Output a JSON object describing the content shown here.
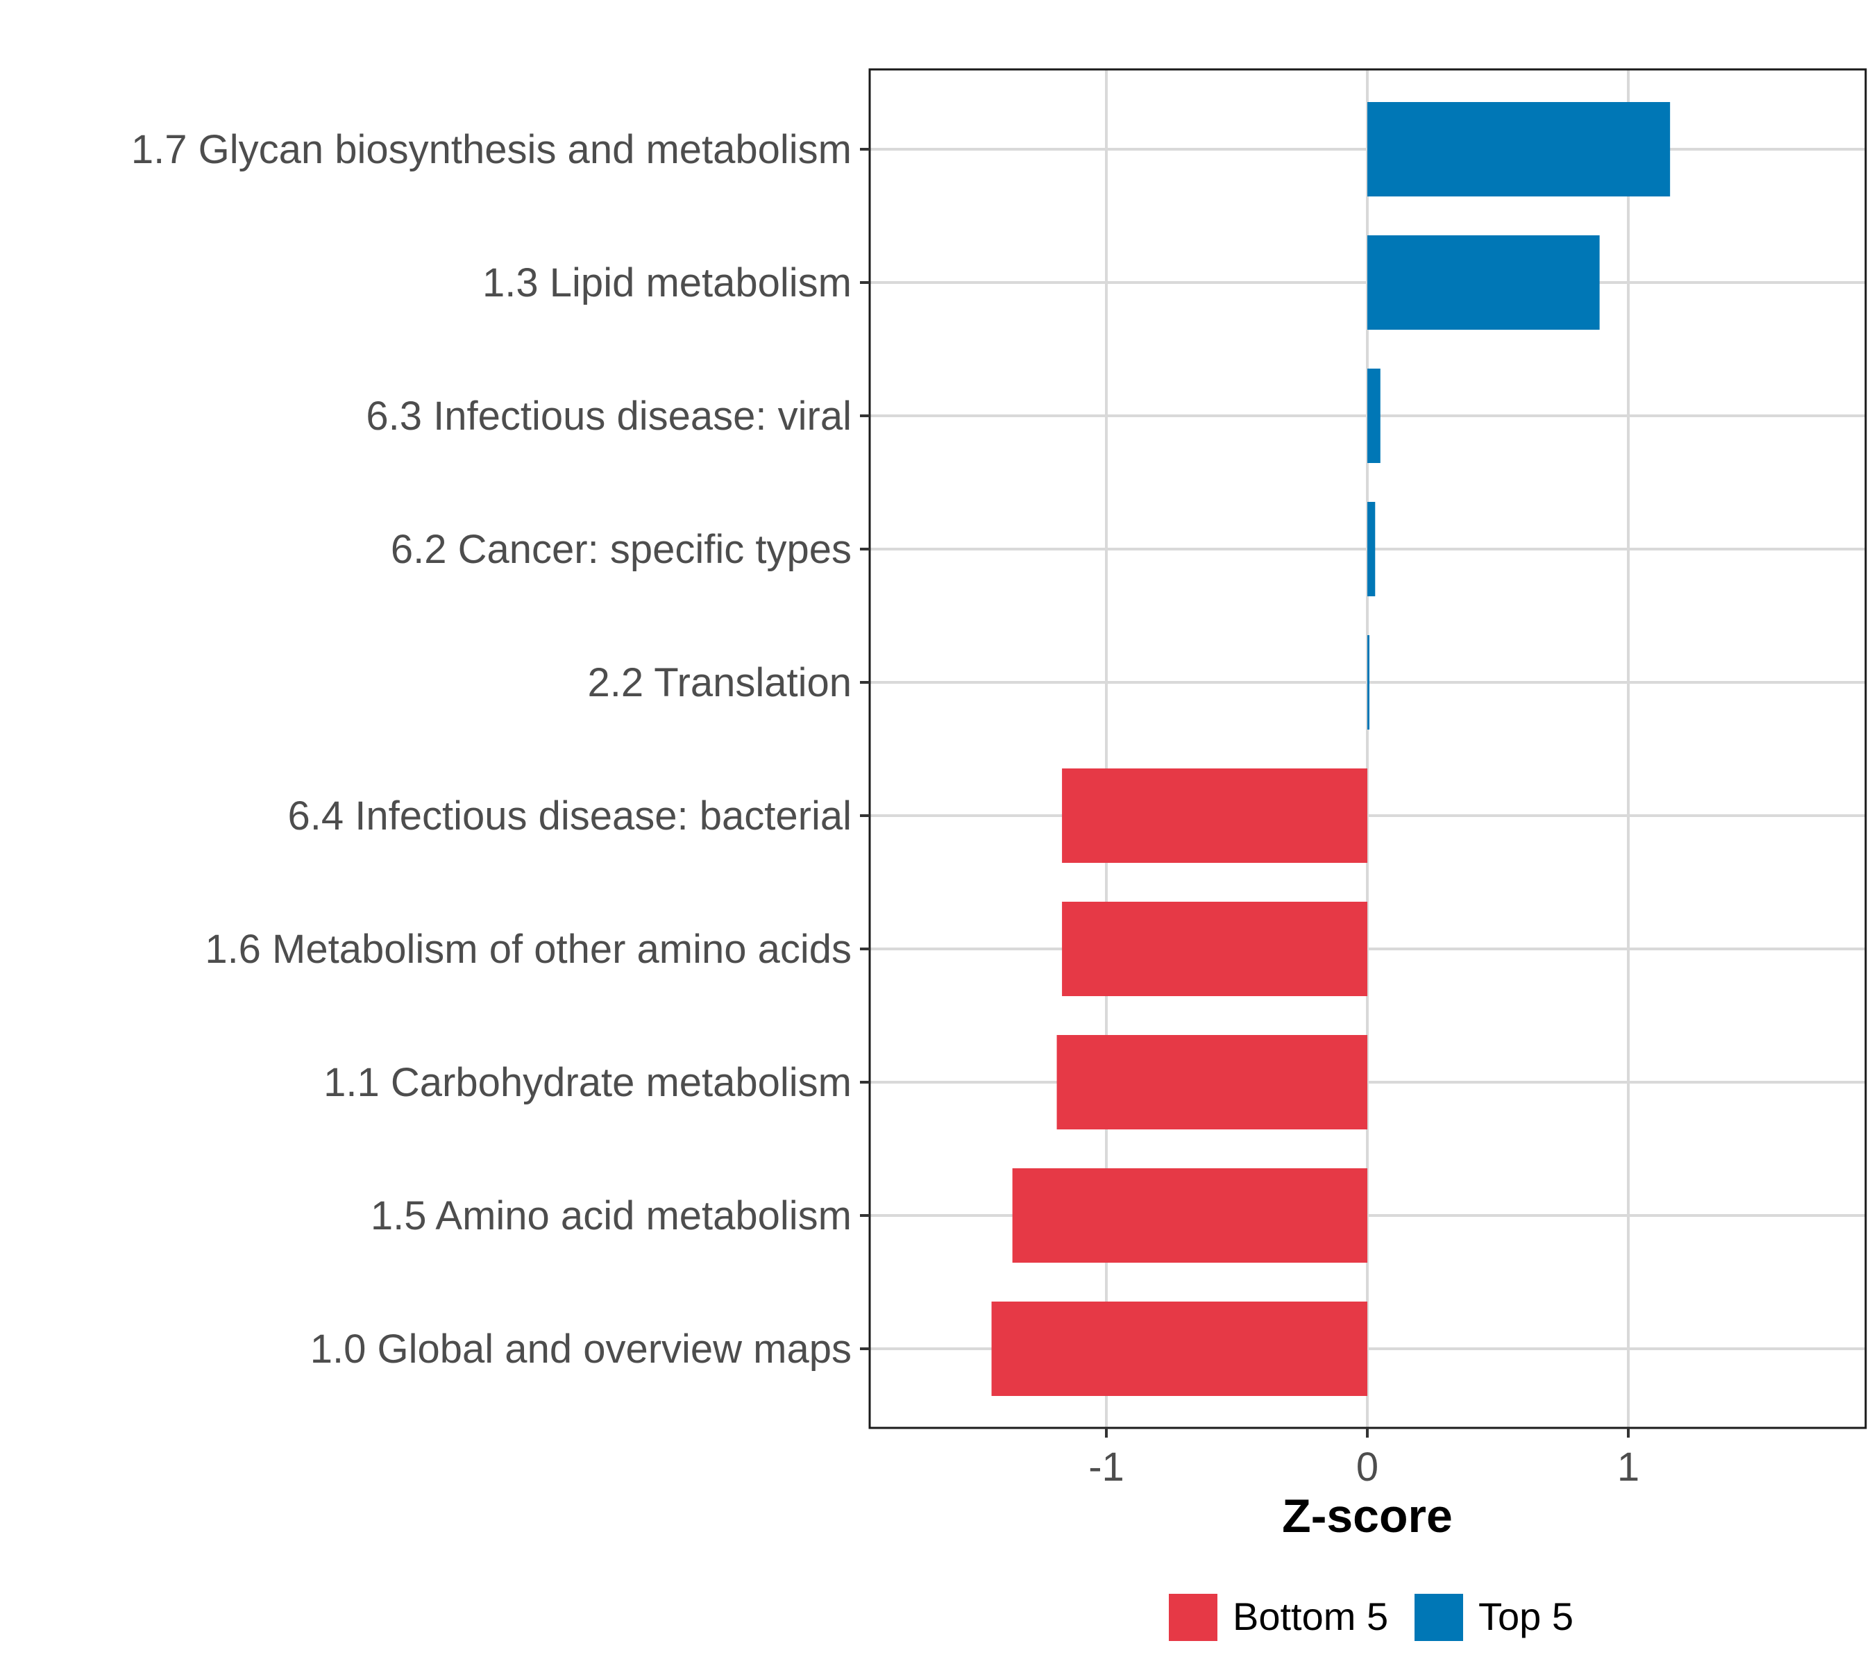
{
  "chart_data": {
    "type": "bar",
    "orientation": "horizontal",
    "categories": [
      "1.7 Glycan biosynthesis and metabolism",
      "1.3 Lipid metabolism",
      "6.3 Infectious disease: viral",
      "6.2 Cancer: specific types",
      "2.2 Translation",
      "6.4 Infectious disease: bacterial",
      "1.6 Metabolism of other amino acids",
      "1.1 Carbohydrate metabolism",
      "1.5 Amino acid metabolism",
      "1.0 Global and overview maps"
    ],
    "values": [
      1.16,
      0.89,
      0.05,
      0.03,
      0.005,
      -1.17,
      -1.17,
      -1.19,
      -1.36,
      -1.44
    ],
    "groups": [
      "Top 5",
      "Top 5",
      "Top 5",
      "Top 5",
      "Top 5",
      "Bottom 5",
      "Bottom 5",
      "Bottom 5",
      "Bottom 5",
      "Bottom 5"
    ],
    "title": "",
    "xlabel": "Z-score",
    "ylabel": "",
    "xlim": [
      -1.9,
      1.9
    ],
    "xticks": [
      -1,
      0,
      1
    ],
    "xtick_labels": [
      "-1",
      "0",
      "1"
    ],
    "grid": true,
    "legend": {
      "position": "bottom",
      "entries": [
        {
          "label": "Bottom 5",
          "color": "#E63946"
        },
        {
          "label": "Top 5",
          "color": "#0077B6"
        }
      ]
    },
    "colors": {
      "Top 5": "#0077B6",
      "Bottom 5": "#E63946"
    }
  }
}
